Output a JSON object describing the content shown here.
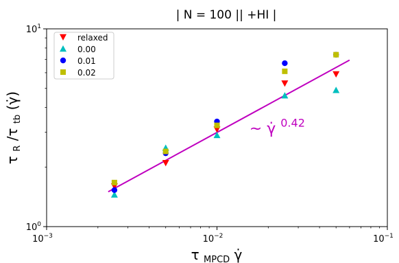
{
  "chart_data": {
    "type": "scatter",
    "title": "| N = 100 || +HI  |",
    "xlabel": {
      "base": "τ",
      "sub": "MPCD",
      "tail": "γ̇"
    },
    "ylabel": {
      "part1": "τ",
      "sub1": "R",
      "mid": "/τ",
      "sub2": "tb",
      "tail": "(γ̇)"
    },
    "x_scale": "log",
    "y_scale": "log",
    "xlim": [
      0.001,
      0.1
    ],
    "ylim": [
      1,
      10
    ],
    "x_ticks": [
      {
        "value": 0.001,
        "base": "10",
        "exp": "−3"
      },
      {
        "value": 0.01,
        "base": "10",
        "exp": "−2"
      },
      {
        "value": 0.1,
        "base": "10",
        "exp": "−1"
      }
    ],
    "y_ticks": [
      {
        "value": 1,
        "base": "10",
        "exp": "0"
      },
      {
        "value": 10,
        "base": "10",
        "exp": "1"
      }
    ],
    "grid": false,
    "legend_position": "top-left",
    "series": [
      {
        "name": "relaxed",
        "marker": "triangle-down",
        "color": "#ff0000",
        "x": [
          0.0025,
          0.005,
          0.01,
          0.025,
          0.05
        ],
        "y": [
          1.6,
          2.1,
          3.1,
          5.3,
          5.9
        ]
      },
      {
        "name": "0.00",
        "marker": "triangle-up",
        "color": "#00bfbf",
        "x": [
          0.0025,
          0.005,
          0.01,
          0.025,
          0.05
        ],
        "y": [
          1.45,
          2.5,
          2.9,
          4.6,
          4.9
        ]
      },
      {
        "name": "0.01",
        "marker": "circle",
        "color": "#0000ff",
        "x": [
          0.0025,
          0.005,
          0.01,
          0.025,
          0.05
        ],
        "y": [
          1.53,
          2.35,
          3.4,
          6.7,
          7.4
        ]
      },
      {
        "name": "0.02",
        "marker": "square",
        "color": "#bfbf00",
        "x": [
          0.0025,
          0.005,
          0.01,
          0.025,
          0.05
        ],
        "y": [
          1.67,
          2.4,
          3.25,
          6.1,
          7.4
        ]
      }
    ],
    "fit_line": {
      "color": "#bf00bf",
      "x": [
        0.0023,
        0.06
      ],
      "y": [
        1.5,
        6.95
      ]
    },
    "annotation": {
      "prefix": "~ γ̇",
      "exponent": "0.42",
      "color": "#bf00bf",
      "x": 0.0155,
      "y": 2.95
    }
  }
}
